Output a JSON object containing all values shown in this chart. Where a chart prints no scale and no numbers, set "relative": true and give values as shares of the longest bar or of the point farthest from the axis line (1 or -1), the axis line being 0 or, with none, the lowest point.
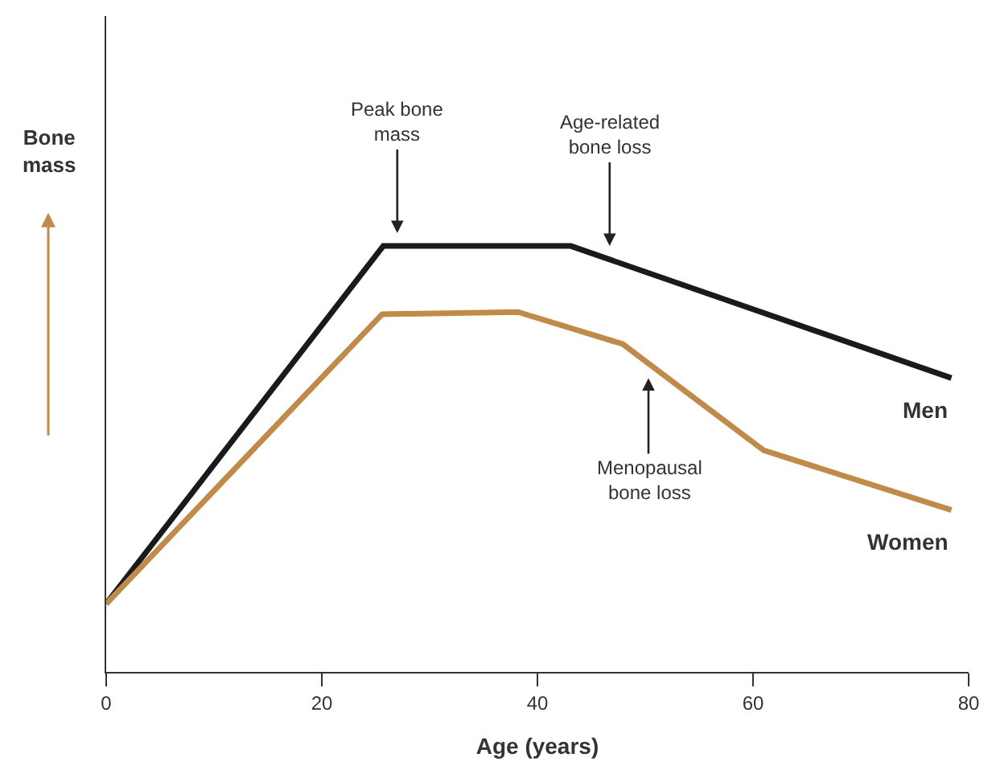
{
  "chart_data": {
    "type": "line",
    "relative": true,
    "xlabel": "Age (years)",
    "xlim": [
      0,
      80
    ],
    "xticks": [
      0,
      20,
      40,
      60,
      80
    ],
    "legend": false,
    "marker": "none",
    "line_style": "solid",
    "series": [
      {
        "name": "Men",
        "color": "#1a1a1a",
        "x": [
          0,
          25.7,
          43.1,
          78.4
        ],
        "values": [
          0.16,
          1,
          1,
          0.69
        ]
      },
      {
        "name": "Women",
        "color": "#c08a4a",
        "x": [
          0,
          25.6,
          38.2,
          47.9,
          61.0,
          78.4
        ],
        "values": [
          0.16,
          0.84,
          0.845,
          0.77,
          0.52,
          0.38
        ]
      }
    ],
    "annotations": [
      "Bone mass",
      {
        "text": "Peak bone mass",
        "x": 27,
        "y": 1
      },
      {
        "text": "Age-related bone loss",
        "x": 46.7,
        "y": 0.97
      },
      {
        "text": "Menopausal bone loss",
        "x": 50.3,
        "y": 0.72
      }
    ]
  }
}
